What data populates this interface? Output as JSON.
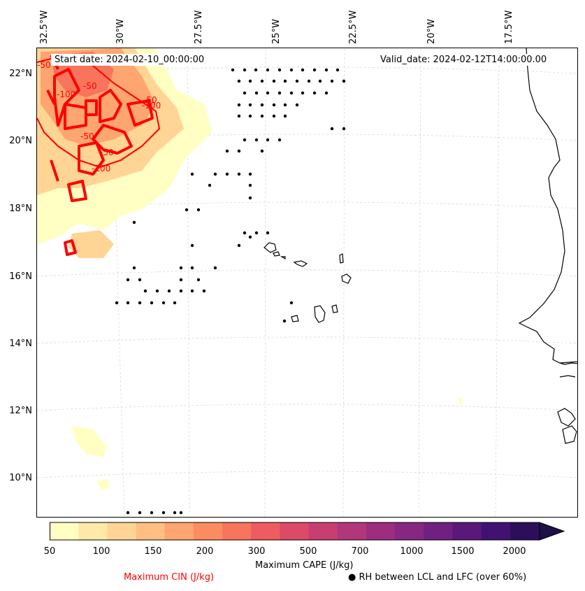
{
  "map": {
    "start_date": "Start date: 2024-02-10_00:00:00",
    "valid_date": "Valid_date: 2024-02-12T14:00:00.00",
    "lon_labels": [
      "32.5°W",
      "30°W",
      "27.5°W",
      "25°W",
      "22.5°W",
      "20°W",
      "17.5°W"
    ],
    "lat_labels": [
      "22°N",
      "20°N",
      "18°N",
      "16°N",
      "14°N",
      "12°N",
      "10°N"
    ],
    "cin_contour_labels": [
      "-50",
      "-100",
      "-50",
      "-50",
      "-100",
      "-100",
      "-50",
      "-50"
    ]
  },
  "colorbar": {
    "label": "Maximum CAPE (J/kg)",
    "ticks": [
      "50",
      "100",
      "150",
      "200",
      "300",
      "500",
      "700",
      "1000",
      "1500",
      "2000"
    ],
    "colors": [
      "#ffffc4",
      "#ffe9a8",
      "#ffd596",
      "#ffbe82",
      "#fea570",
      "#fc8c60",
      "#f8745c",
      "#ee5b60",
      "#dc4a68",
      "#c83e73",
      "#b2367a",
      "#9c2d7f",
      "#862781",
      "#702080",
      "#5a187b",
      "#421272",
      "#2c0f5a",
      "#1d1147"
    ]
  },
  "legend": {
    "cin": "Maximum CIN (J/kg)",
    "cin_color": "#ff0000",
    "rh": "RH between LCL and LFC (over 60%)"
  }
}
